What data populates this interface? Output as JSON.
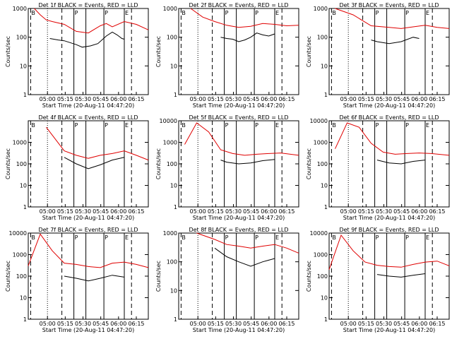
{
  "chart_data": [
    {
      "type": "line",
      "title": "Det 1f BLACK = Events, RED = LLD",
      "xlabel": "Start Time (20-Aug-11 04:47:20)",
      "ylabel": "Counts/sec",
      "xticks": [
        "05:00",
        "05:15",
        "05:30",
        "05:45",
        "06:00",
        "06:15"
      ],
      "yticks": [
        "1",
        "10",
        "100",
        "1000"
      ],
      "ylim": [
        1,
        1000
      ],
      "yscale": "log",
      "markers": [
        "B",
        "P",
        "P",
        "E"
      ],
      "series": [
        {
          "name": "Events",
          "color": "#000000",
          "x": [
            0.18,
            0.25,
            0.3,
            0.4,
            0.45,
            0.52,
            0.58,
            0.65,
            0.7,
            0.74,
            0.78,
            0.8
          ],
          "values": [
            90,
            80,
            75,
            55,
            45,
            50,
            60,
            110,
            150,
            120,
            90,
            85
          ]
        },
        {
          "name": "LLD",
          "color": "#e00000",
          "x": [
            0.05,
            0.1,
            0.15,
            0.2,
            0.3,
            0.4,
            0.5,
            0.6,
            0.65,
            0.7,
            0.8,
            0.9,
            1.0
          ],
          "values": [
            1000,
            600,
            400,
            350,
            280,
            160,
            140,
            250,
            300,
            230,
            350,
            280,
            180
          ]
        }
      ]
    },
    {
      "type": "line",
      "title": "Det 2f BLACK = Events, RED = LLD",
      "xlabel": "Start Time (20-Aug-11 04:47:20)",
      "ylabel": "Counts/sec",
      "xticks": [
        "05:00",
        "05:15",
        "05:30",
        "05:45",
        "06:00",
        "06:15"
      ],
      "yticks": [
        "1",
        "10",
        "100",
        "1000"
      ],
      "ylim": [
        1,
        1000
      ],
      "yscale": "log",
      "markers": [
        "B",
        "P",
        "P",
        "E"
      ],
      "series": [
        {
          "name": "Events",
          "color": "#000000",
          "x": [
            0.35,
            0.4,
            0.45,
            0.5,
            0.55,
            0.6,
            0.65,
            0.7,
            0.75,
            0.8
          ],
          "values": [
            100,
            90,
            85,
            70,
            80,
            100,
            140,
            120,
            110,
            130
          ]
        },
        {
          "name": "LLD",
          "color": "#e00000",
          "x": [
            0.1,
            0.2,
            0.3,
            0.4,
            0.5,
            0.6,
            0.7,
            0.8,
            0.9,
            1.0
          ],
          "values": [
            1000,
            500,
            350,
            260,
            220,
            240,
            300,
            280,
            250,
            260
          ]
        }
      ]
    },
    {
      "type": "line",
      "title": "Det 3f BLACK = Events, RED = LLD",
      "xlabel": "Start Time (20-Aug-11 04:47:20)",
      "ylabel": "Counts/sec",
      "xticks": [
        "05:00",
        "05:15",
        "05:30",
        "05:45",
        "06:00",
        "06:15"
      ],
      "yticks": [
        "1",
        "10",
        "100",
        "1000"
      ],
      "ylim": [
        1,
        1000
      ],
      "yscale": "log",
      "markers": [
        "B",
        "P",
        "P",
        "E"
      ],
      "series": [
        {
          "name": "Events",
          "color": "#000000",
          "x": [
            0.35,
            0.4,
            0.5,
            0.6,
            0.7,
            0.75
          ],
          "values": [
            80,
            70,
            60,
            70,
            100,
            90
          ]
        },
        {
          "name": "LLD",
          "color": "#e00000",
          "x": [
            0.05,
            0.2,
            0.35,
            0.5,
            0.6,
            0.7,
            0.8,
            0.9,
            1.0
          ],
          "values": [
            1000,
            600,
            250,
            220,
            200,
            230,
            260,
            220,
            200
          ]
        }
      ]
    },
    {
      "type": "line",
      "title": "Det 4f BLACK = Events, RED = LLD",
      "xlabel": "Start Time (20-Aug-11 04:47:20)",
      "ylabel": "Counts/sec",
      "xticks": [
        "05:00",
        "05:15",
        "05:30",
        "05:45",
        "06:00",
        "06:15"
      ],
      "yticks": [
        "1",
        "10",
        "100",
        "1000"
      ],
      "ylim": [
        1,
        10000
      ],
      "yscale": "log",
      "markers": [
        "B",
        "P",
        "P",
        "E"
      ],
      "series": [
        {
          "name": "Events",
          "color": "#000000",
          "x": [
            0.3,
            0.4,
            0.5,
            0.6,
            0.7,
            0.8
          ],
          "values": [
            200,
            100,
            60,
            90,
            150,
            200
          ]
        },
        {
          "name": "LLD",
          "color": "#e00000",
          "x": [
            0.15,
            0.3,
            0.4,
            0.5,
            0.6,
            0.7,
            0.8,
            0.9,
            1.0
          ],
          "values": [
            5000,
            400,
            250,
            180,
            250,
            300,
            400,
            250,
            150
          ]
        }
      ]
    },
    {
      "type": "line",
      "title": "Det 5f BLACK = Events, RED = LLD",
      "xlabel": "Start Time (20-Aug-11 04:47:20)",
      "ylabel": "Counts/sec",
      "xticks": [
        "05:00",
        "05:15",
        "05:30",
        "05:45",
        "06:00",
        "06:15"
      ],
      "yticks": [
        "1",
        "10",
        "100",
        "1000",
        "10000"
      ],
      "ylim": [
        1,
        10000
      ],
      "yscale": "log",
      "markers": [
        "B",
        "P",
        "P",
        "E"
      ],
      "series": [
        {
          "name": "Events",
          "color": "#000000",
          "x": [
            0.35,
            0.4,
            0.5,
            0.6,
            0.7,
            0.8
          ],
          "values": [
            150,
            120,
            100,
            110,
            140,
            160
          ]
        },
        {
          "name": "LLD",
          "color": "#e00000",
          "x": [
            0.05,
            0.15,
            0.25,
            0.35,
            0.45,
            0.55,
            0.65,
            0.75,
            0.85,
            1.0
          ],
          "values": [
            800,
            8000,
            3000,
            450,
            300,
            250,
            280,
            300,
            320,
            250
          ]
        }
      ]
    },
    {
      "type": "line",
      "title": "Det 6f BLACK = Events, RED = LLD",
      "xlabel": "Start Time (20-Aug-11 04:47:20)",
      "ylabel": "Counts/sec",
      "xticks": [
        "05:00",
        "05:15",
        "05:30",
        "05:45",
        "06:00",
        "06:15"
      ],
      "yticks": [
        "1",
        "10",
        "100",
        "1000",
        "10000"
      ],
      "ylim": [
        1,
        10000
      ],
      "yscale": "log",
      "markers": [
        "B",
        "P",
        "P",
        "E"
      ],
      "series": [
        {
          "name": "Events",
          "color": "#000000",
          "x": [
            0.4,
            0.5,
            0.6,
            0.7,
            0.8
          ],
          "values": [
            150,
            110,
            100,
            130,
            150
          ]
        },
        {
          "name": "LLD",
          "color": "#e00000",
          "x": [
            0.05,
            0.15,
            0.25,
            0.35,
            0.45,
            0.55,
            0.65,
            0.75,
            0.85,
            1.0
          ],
          "values": [
            500,
            8000,
            5000,
            900,
            350,
            280,
            300,
            320,
            300,
            250
          ]
        }
      ]
    },
    {
      "type": "line",
      "title": "Det 7f BLACK = Events, RED = LLD",
      "xlabel": "Start Time (20-Aug-11 04:47:20)",
      "ylabel": "Counts/sec",
      "xticks": [
        "05:00",
        "05:15",
        "05:30",
        "05:45",
        "06:00",
        "06:15"
      ],
      "yticks": [
        "1",
        "10",
        "100",
        "1000",
        "10000"
      ],
      "ylim": [
        1,
        10000
      ],
      "yscale": "log",
      "markers": [
        "B",
        "P",
        "P",
        "E"
      ],
      "series": [
        {
          "name": "Events",
          "color": "#000000",
          "x": [
            0.3,
            0.4,
            0.5,
            0.6,
            0.7,
            0.8
          ],
          "values": [
            100,
            80,
            60,
            80,
            110,
            90
          ]
        },
        {
          "name": "LLD",
          "color": "#e00000",
          "x": [
            0.0,
            0.1,
            0.2,
            0.3,
            0.4,
            0.5,
            0.6,
            0.7,
            0.8,
            0.9,
            1.0
          ],
          "values": [
            300,
            9000,
            1500,
            400,
            350,
            280,
            250,
            400,
            450,
            350,
            250
          ]
        }
      ]
    },
    {
      "type": "line",
      "title": "Det 8f BLACK = Events, RED = LLD",
      "xlabel": "Start Time (20-Aug-11 04:47:20)",
      "ylabel": "Counts/sec",
      "xticks": [
        "05:00",
        "05:15",
        "05:30",
        "05:45",
        "06:00",
        "06:15"
      ],
      "yticks": [
        "1",
        "10",
        "100",
        "1000"
      ],
      "ylim": [
        1,
        1000
      ],
      "yscale": "log",
      "markers": [
        "B",
        "P",
        "P",
        "E"
      ],
      "series": [
        {
          "name": "Events",
          "color": "#000000",
          "x": [
            0.3,
            0.4,
            0.5,
            0.6,
            0.7,
            0.8
          ],
          "values": [
            300,
            150,
            100,
            70,
            100,
            130
          ]
        },
        {
          "name": "LLD",
          "color": "#e00000",
          "x": [
            0.15,
            0.3,
            0.4,
            0.5,
            0.6,
            0.7,
            0.8,
            0.9,
            1.0
          ],
          "values": [
            1000,
            600,
            400,
            350,
            300,
            350,
            400,
            300,
            200
          ]
        }
      ]
    },
    {
      "type": "line",
      "title": "Det 9f BLACK = Events, RED = LLD",
      "xlabel": "Start Time (20-Aug-11 04:47:20)",
      "ylabel": "Counts/sec",
      "xticks": [
        "05:00",
        "05:15",
        "05:30",
        "05:45",
        "06:00",
        "06:15"
      ],
      "yticks": [
        "1",
        "10",
        "100",
        "1000",
        "10000"
      ],
      "ylim": [
        1,
        10000
      ],
      "yscale": "log",
      "markers": [
        "B",
        "P",
        "P",
        "E"
      ],
      "series": [
        {
          "name": "Events",
          "color": "#000000",
          "x": [
            0.4,
            0.5,
            0.6,
            0.7,
            0.8
          ],
          "values": [
            120,
            100,
            90,
            110,
            130
          ]
        },
        {
          "name": "LLD",
          "color": "#e00000",
          "x": [
            0.0,
            0.1,
            0.2,
            0.3,
            0.4,
            0.5,
            0.6,
            0.7,
            0.8,
            0.9,
            1.0
          ],
          "values": [
            200,
            8000,
            1500,
            450,
            320,
            280,
            260,
            350,
            450,
            500,
            300
          ]
        }
      ]
    }
  ]
}
